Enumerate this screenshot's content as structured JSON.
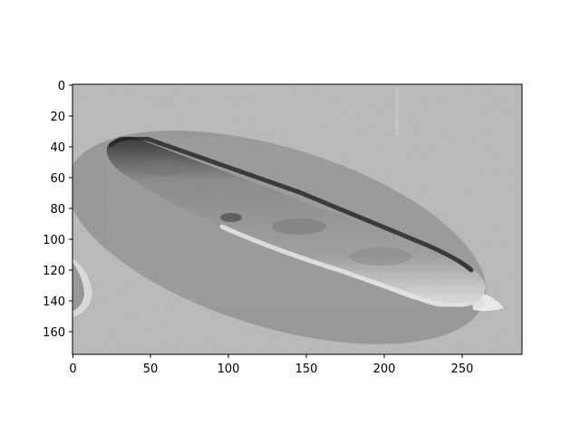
{
  "image": {
    "description_kind": "grayscale microscopy image of an elongated cell inside an elliptical masked region",
    "x_ticks": [
      "0",
      "50",
      "100",
      "150",
      "200",
      "250"
    ],
    "y_ticks": [
      "0",
      "20",
      "40",
      "60",
      "80",
      "100",
      "120",
      "140",
      "160"
    ],
    "colors": {
      "background_gray": "#bdbdbd",
      "mask_gray": "#9a9a9a",
      "cell_gray": "#8b8b8b",
      "cell_dark_edge": "#2a2a2a",
      "cell_bright_edge": "#e6e6e6"
    }
  }
}
